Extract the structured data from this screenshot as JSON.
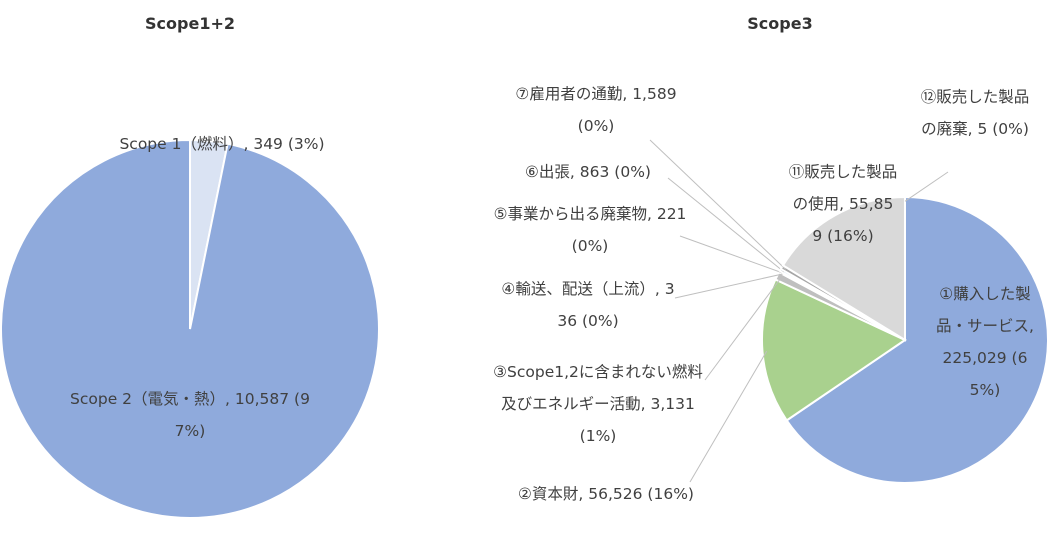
{
  "chart_data": [
    {
      "type": "pie",
      "title": "Scope1+2",
      "categories": [
        "Scope 1（燃料）",
        "Scope 2（電気・熱）"
      ],
      "values": [
        349,
        10587
      ],
      "value_labels": [
        "349 (3%)",
        "10,587 (97%)"
      ],
      "colors": [
        "#dae3f3",
        "#8faadc"
      ]
    },
    {
      "type": "pie",
      "title": "Scope3",
      "categories": [
        "①購入した製品・サービス",
        "②資本財",
        "③Scope1,2に含まれない燃料及びエネルギー活動",
        "④輸送、配送（上流）",
        "⑤事業から出る廃棄物",
        "⑥出張",
        "⑦雇用者の通勤",
        "⑪販売した製品の使用",
        "⑫販売した製品の廃棄"
      ],
      "values": [
        225029,
        56526,
        3131,
        336,
        221,
        863,
        1589,
        55859,
        5
      ],
      "value_labels": [
        "225,029 (65%)",
        "56,526 (16%)",
        "3,131 (1%)",
        "336 (0%)",
        "221 (0%)",
        "863 (0%)",
        "1,589 (0%)",
        "55,859 (16%)",
        "5 (0%)"
      ],
      "colors": [
        "#8faadc",
        "#a9d18e",
        "#bfbfbf",
        "#b4c7e7",
        "#c9c9c9",
        "#9dc3e6",
        "#a6a6a6",
        "#d9d9d9",
        "#cfcfcf"
      ]
    }
  ]
}
